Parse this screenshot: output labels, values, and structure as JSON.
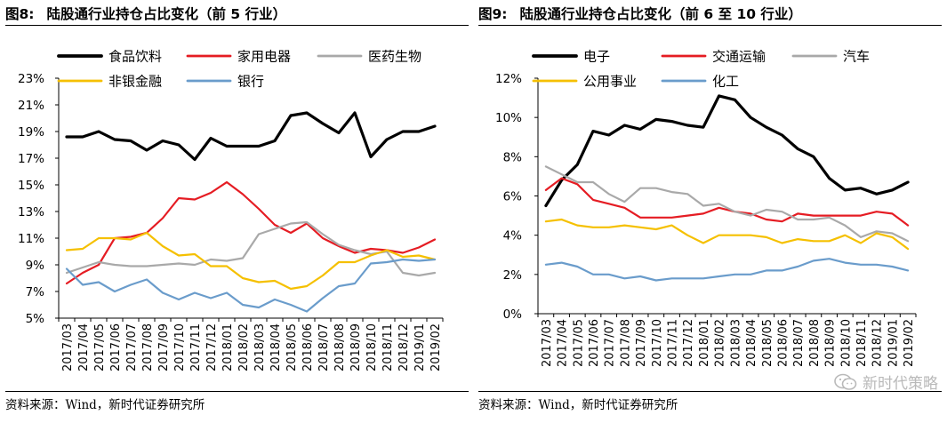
{
  "chart_data": [
    {
      "type": "line",
      "figure_label": "图8:",
      "title": "陆股通行业持仓占比变化（前 5 行业）",
      "source": "资料来源：Wind，新时代证券研究所",
      "categories": [
        "2017/03",
        "2017/04",
        "2017/05",
        "2017/06",
        "2017/07",
        "2017/08",
        "2017/09",
        "2017/10",
        "2017/11",
        "2017/12",
        "2018/01",
        "2018/02",
        "2018/03",
        "2018/04",
        "2018/05",
        "2018/06",
        "2018/07",
        "2018/08",
        "2018/09",
        "2018/10",
        "2018/11",
        "2018/12",
        "2019/01",
        "2019/02"
      ],
      "y_ticks": [
        "23%",
        "21%",
        "19%",
        "17%",
        "15%",
        "13%",
        "11%",
        "9%",
        "7%",
        "5%"
      ],
      "ylim": [
        5,
        23
      ],
      "series": [
        {
          "name": "食品饮料",
          "color": "#000000",
          "width": 3.2,
          "values": [
            18.6,
            18.6,
            19.0,
            18.4,
            18.3,
            17.6,
            18.3,
            18.0,
            16.9,
            18.5,
            17.9,
            17.9,
            17.9,
            18.3,
            20.2,
            20.4,
            19.6,
            18.9,
            20.4,
            17.1,
            18.4,
            19.0,
            19.0,
            19.4
          ]
        },
        {
          "name": "家用电器",
          "color": "#e51c23",
          "width": 2.2,
          "values": [
            7.6,
            8.4,
            9.0,
            11.0,
            11.1,
            11.4,
            12.5,
            14.0,
            13.9,
            14.4,
            15.2,
            14.3,
            13.2,
            12.0,
            11.4,
            12.1,
            11.0,
            10.4,
            9.9,
            10.2,
            10.1,
            9.9,
            10.3,
            10.9
          ]
        },
        {
          "name": "医药生物",
          "color": "#a9a9a9",
          "width": 2.2,
          "values": [
            8.4,
            8.8,
            9.2,
            9.0,
            8.9,
            8.9,
            9.0,
            9.1,
            9.0,
            9.4,
            9.3,
            9.5,
            11.3,
            11.7,
            12.1,
            12.2,
            11.3,
            10.5,
            10.1,
            9.8,
            10.0,
            8.4,
            8.2,
            8.4
          ]
        },
        {
          "name": "非银金融",
          "color": "#f5c000",
          "width": 2.2,
          "values": [
            10.1,
            10.2,
            11.0,
            11.0,
            10.9,
            11.4,
            10.4,
            9.7,
            9.8,
            8.9,
            8.9,
            8.0,
            7.7,
            7.8,
            7.2,
            7.4,
            8.2,
            9.2,
            9.2,
            9.7,
            10.1,
            9.6,
            9.7,
            9.4
          ]
        },
        {
          "name": "银行",
          "color": "#6a9ccb",
          "width": 2.2,
          "values": [
            8.7,
            7.5,
            7.7,
            7.0,
            7.5,
            7.9,
            6.9,
            6.4,
            6.9,
            6.5,
            6.9,
            6.0,
            5.8,
            6.4,
            6.0,
            5.5,
            6.5,
            7.4,
            7.6,
            9.1,
            9.2,
            9.4,
            9.3,
            9.4
          ]
        }
      ]
    },
    {
      "type": "line",
      "figure_label": "图9:",
      "title": "陆股通行业持仓占比变化（前 6 至 10 行业）",
      "source": "资料来源：Wind，新时代证券研究所",
      "watermark": "新时代策略",
      "categories": [
        "2017/03",
        "2017/04",
        "2017/05",
        "2017/06",
        "2017/07",
        "2017/08",
        "2017/09",
        "2017/10",
        "2017/11",
        "2017/12",
        "2018/01",
        "2018/02",
        "2018/03",
        "2018/04",
        "2018/05",
        "2018/06",
        "2018/07",
        "2018/08",
        "2018/09",
        "2018/10",
        "2018/11",
        "2018/12",
        "2019/01",
        "2019/02"
      ],
      "y_ticks": [
        "12%",
        "10%",
        "8%",
        "6%",
        "4%",
        "2%",
        "0%"
      ],
      "ylim": [
        0,
        12
      ],
      "series": [
        {
          "name": "电子",
          "color": "#000000",
          "width": 3.2,
          "values": [
            5.5,
            6.8,
            7.6,
            9.3,
            9.1,
            9.6,
            9.4,
            9.9,
            9.8,
            9.6,
            9.5,
            11.1,
            10.9,
            10.0,
            9.5,
            9.1,
            8.4,
            8.0,
            6.9,
            6.3,
            6.4,
            6.1,
            6.3,
            6.7
          ]
        },
        {
          "name": "交通运输",
          "color": "#e51c23",
          "width": 2.2,
          "values": [
            6.3,
            6.9,
            6.6,
            5.8,
            5.6,
            5.4,
            4.9,
            4.9,
            4.9,
            5.0,
            5.1,
            5.4,
            5.2,
            5.1,
            4.8,
            4.7,
            5.1,
            5.0,
            5.0,
            5.0,
            5.0,
            5.2,
            5.1,
            4.5
          ]
        },
        {
          "name": "汽车",
          "color": "#a9a9a9",
          "width": 2.2,
          "values": [
            7.5,
            7.1,
            6.7,
            6.7,
            6.1,
            5.7,
            6.4,
            6.4,
            6.2,
            6.1,
            5.5,
            5.6,
            5.2,
            5.0,
            5.3,
            5.2,
            4.8,
            4.8,
            4.9,
            4.5,
            3.9,
            4.2,
            4.1,
            3.7
          ]
        },
        {
          "name": "公用事业",
          "color": "#f5c000",
          "width": 2.2,
          "values": [
            4.7,
            4.8,
            4.5,
            4.4,
            4.4,
            4.5,
            4.4,
            4.3,
            4.5,
            4.0,
            3.6,
            4.0,
            4.0,
            4.0,
            3.9,
            3.6,
            3.8,
            3.7,
            3.7,
            4.0,
            3.6,
            4.1,
            3.9,
            3.3
          ]
        },
        {
          "name": "化工",
          "color": "#6a9ccb",
          "width": 2.2,
          "values": [
            2.5,
            2.6,
            2.4,
            2.0,
            2.0,
            1.8,
            1.9,
            1.7,
            1.8,
            1.8,
            1.8,
            1.9,
            2.0,
            2.0,
            2.2,
            2.2,
            2.4,
            2.7,
            2.8,
            2.6,
            2.5,
            2.5,
            2.4,
            2.2
          ]
        }
      ]
    }
  ]
}
